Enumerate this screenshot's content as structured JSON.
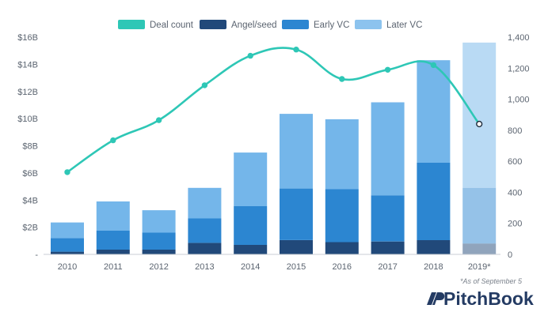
{
  "chart_data": {
    "type": "bar",
    "categories": [
      "2010",
      "2011",
      "2012",
      "2013",
      "2014",
      "2015",
      "2016",
      "2017",
      "2018",
      "2019*"
    ],
    "series": [
      {
        "name": "Angel/seed",
        "values": [
          0.2,
          0.35,
          0.35,
          0.85,
          0.7,
          1.05,
          0.9,
          0.95,
          1.05,
          0.8
        ],
        "color": "#21497a"
      },
      {
        "name": "Early VC",
        "values": [
          1.0,
          1.4,
          1.25,
          1.8,
          2.85,
          3.8,
          3.9,
          3.4,
          5.7,
          4.1
        ],
        "color": "#2c86d1"
      },
      {
        "name": "Later VC",
        "values": [
          1.15,
          2.15,
          1.65,
          2.25,
          3.95,
          5.5,
          5.15,
          6.85,
          7.55,
          10.7
        ],
        "color": "#74b6ea"
      }
    ],
    "line": {
      "name": "Deal count",
      "values": [
        530,
        735,
        865,
        1090,
        1280,
        1320,
        1130,
        1190,
        1220,
        840
      ],
      "color": "#2ec7b6"
    },
    "partial_category": "2019*",
    "y_left": {
      "ticks": [
        "-",
        "$2B",
        "$4B",
        "$6B",
        "$8B",
        "$10B",
        "$12B",
        "$14B",
        "$16B"
      ],
      "min": 0,
      "max": 16
    },
    "y_right": {
      "ticks": [
        "0",
        "200",
        "400",
        "600",
        "800",
        "1,000",
        "1,200",
        "1,400"
      ],
      "min": 0,
      "max": 1400
    },
    "legend_position": "top",
    "grid": false
  },
  "footnote": "*As of September 5",
  "brand": {
    "name": "PitchBook"
  }
}
